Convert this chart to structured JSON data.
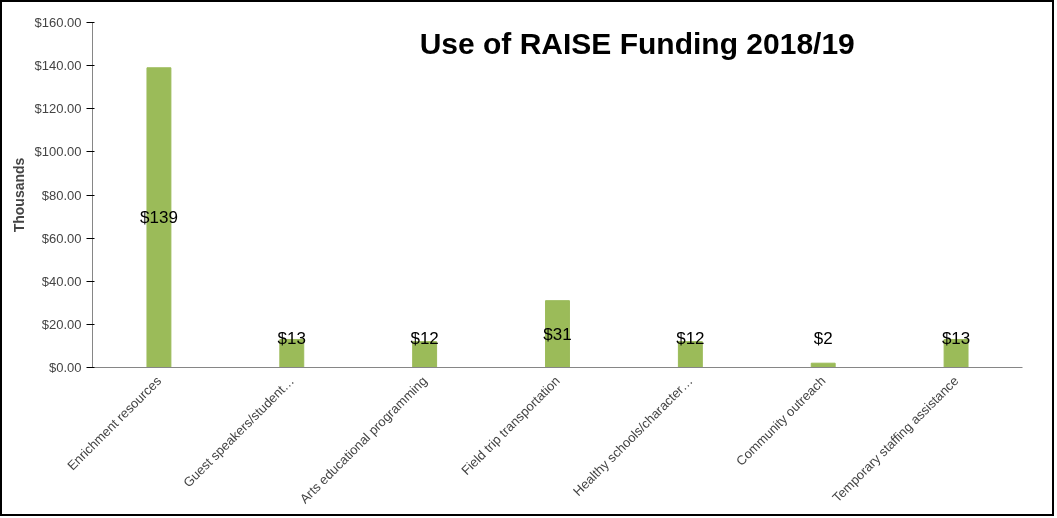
{
  "chart_data": {
    "type": "bar",
    "title": "Use of RAISE Funding 2018/19",
    "ylabel": "Thousands",
    "categories": [
      "Enrichment resources",
      "Guest speakers/student…",
      "Arts educational programming",
      "Field trip transportation",
      "Healthy schools/character…",
      "Community outreach",
      "Temporary staffing assistance"
    ],
    "values": [
      139,
      13,
      12,
      31,
      12,
      2,
      13
    ],
    "value_labels": [
      "$139",
      "$13",
      "$12",
      "$31",
      "$12",
      "$2",
      "$13"
    ],
    "color": "#9bbb59",
    "ylim": [
      0,
      160
    ],
    "yticks": [
      {
        "value": 0,
        "label": "$0.00"
      },
      {
        "value": 20,
        "label": "$20.00"
      },
      {
        "value": 40,
        "label": "$40.00"
      },
      {
        "value": 60,
        "label": "$60.00"
      },
      {
        "value": 80,
        "label": "$80.00"
      },
      {
        "value": 100,
        "label": "$100.00"
      },
      {
        "value": 120,
        "label": "$120.00"
      },
      {
        "value": 140,
        "label": "$140.00"
      },
      {
        "value": 160,
        "label": "$160.00"
      }
    ],
    "grid": false
  }
}
